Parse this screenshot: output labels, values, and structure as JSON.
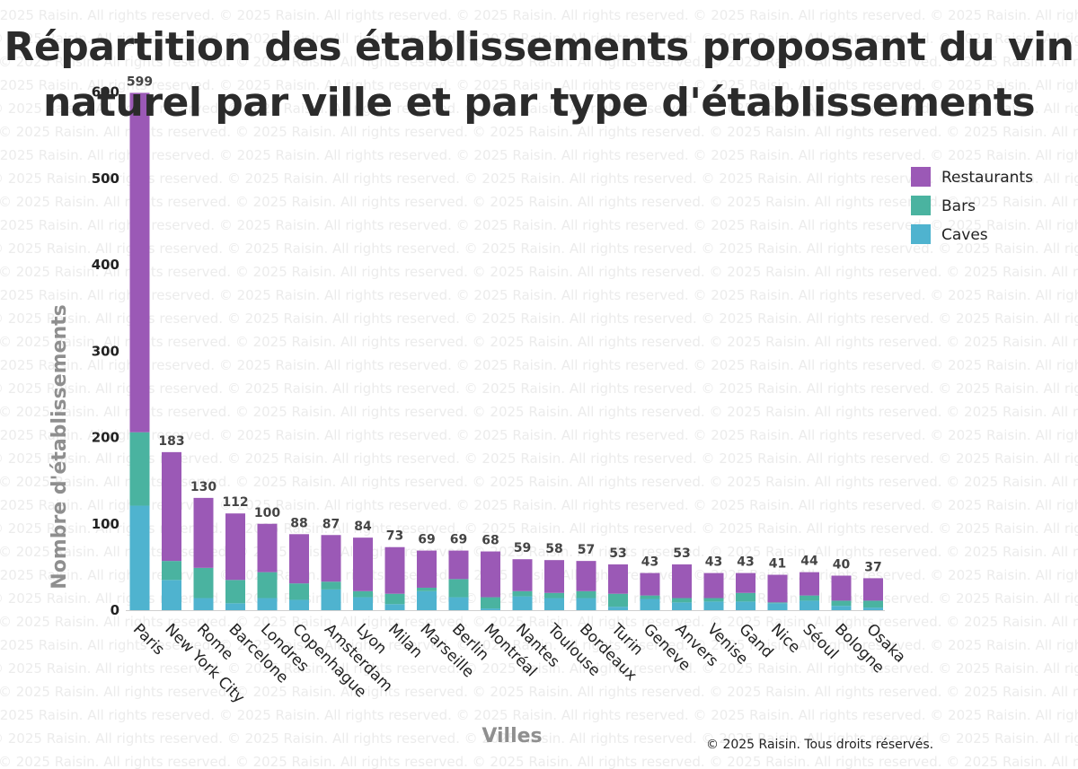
{
  "watermark_text": "© 2025 Raisin. All rights reserved.",
  "copyright": "© 2025 Raisin. Tous droits réservés.",
  "chart_data": {
    "type": "bar",
    "stacked": true,
    "title": "Répartition des établissements proposant du vin naturel par ville et par type d'établissements",
    "xlabel": "Villes",
    "ylabel": "Nombre d'établissements",
    "ylim": [
      0,
      640
    ],
    "yticks": [
      0,
      100,
      200,
      300,
      400,
      500,
      600
    ],
    "grid": false,
    "legend_position": "top-right",
    "categories": [
      "Paris",
      "New York City",
      "Rome",
      "Barcelone",
      "Londres",
      "Copenhague",
      "Amsterdam",
      "Lyon",
      "Milan",
      "Marseille",
      "Berlin",
      "Montréal",
      "Nantes",
      "Toulouse",
      "Bordeaux",
      "Turin",
      "Geneve",
      "Anvers",
      "Venise",
      "Gand",
      "Nice",
      "Séoul",
      "Bologne",
      "Osaka"
    ],
    "totals": [
      599,
      183,
      130,
      112,
      100,
      88,
      87,
      84,
      73,
      69,
      69,
      68,
      59,
      58,
      57,
      53,
      43,
      53,
      43,
      43,
      41,
      44,
      40,
      37
    ],
    "series": [
      {
        "name": "Caves",
        "color": "#4fb3cf",
        "values": [
          121,
          35,
          14,
          8,
          14,
          12,
          24,
          15,
          7,
          22,
          15,
          2,
          16,
          14,
          14,
          4,
          13,
          9,
          10,
          10,
          8,
          11,
          5,
          3
        ]
      },
      {
        "name": "Bars",
        "color": "#4ab3a0",
        "values": [
          85,
          22,
          35,
          27,
          30,
          19,
          9,
          7,
          12,
          4,
          21,
          13,
          6,
          6,
          8,
          15,
          4,
          5,
          4,
          10,
          1,
          6,
          6,
          8
        ]
      },
      {
        "name": "Restaurants",
        "color": "#9b59b6",
        "values": [
          393,
          126,
          81,
          77,
          56,
          57,
          54,
          62,
          54,
          43,
          33,
          53,
          37,
          38,
          35,
          34,
          26,
          39,
          29,
          23,
          32,
          27,
          29,
          26
        ]
      }
    ],
    "legend_order": [
      "Restaurants",
      "Bars",
      "Caves"
    ]
  }
}
